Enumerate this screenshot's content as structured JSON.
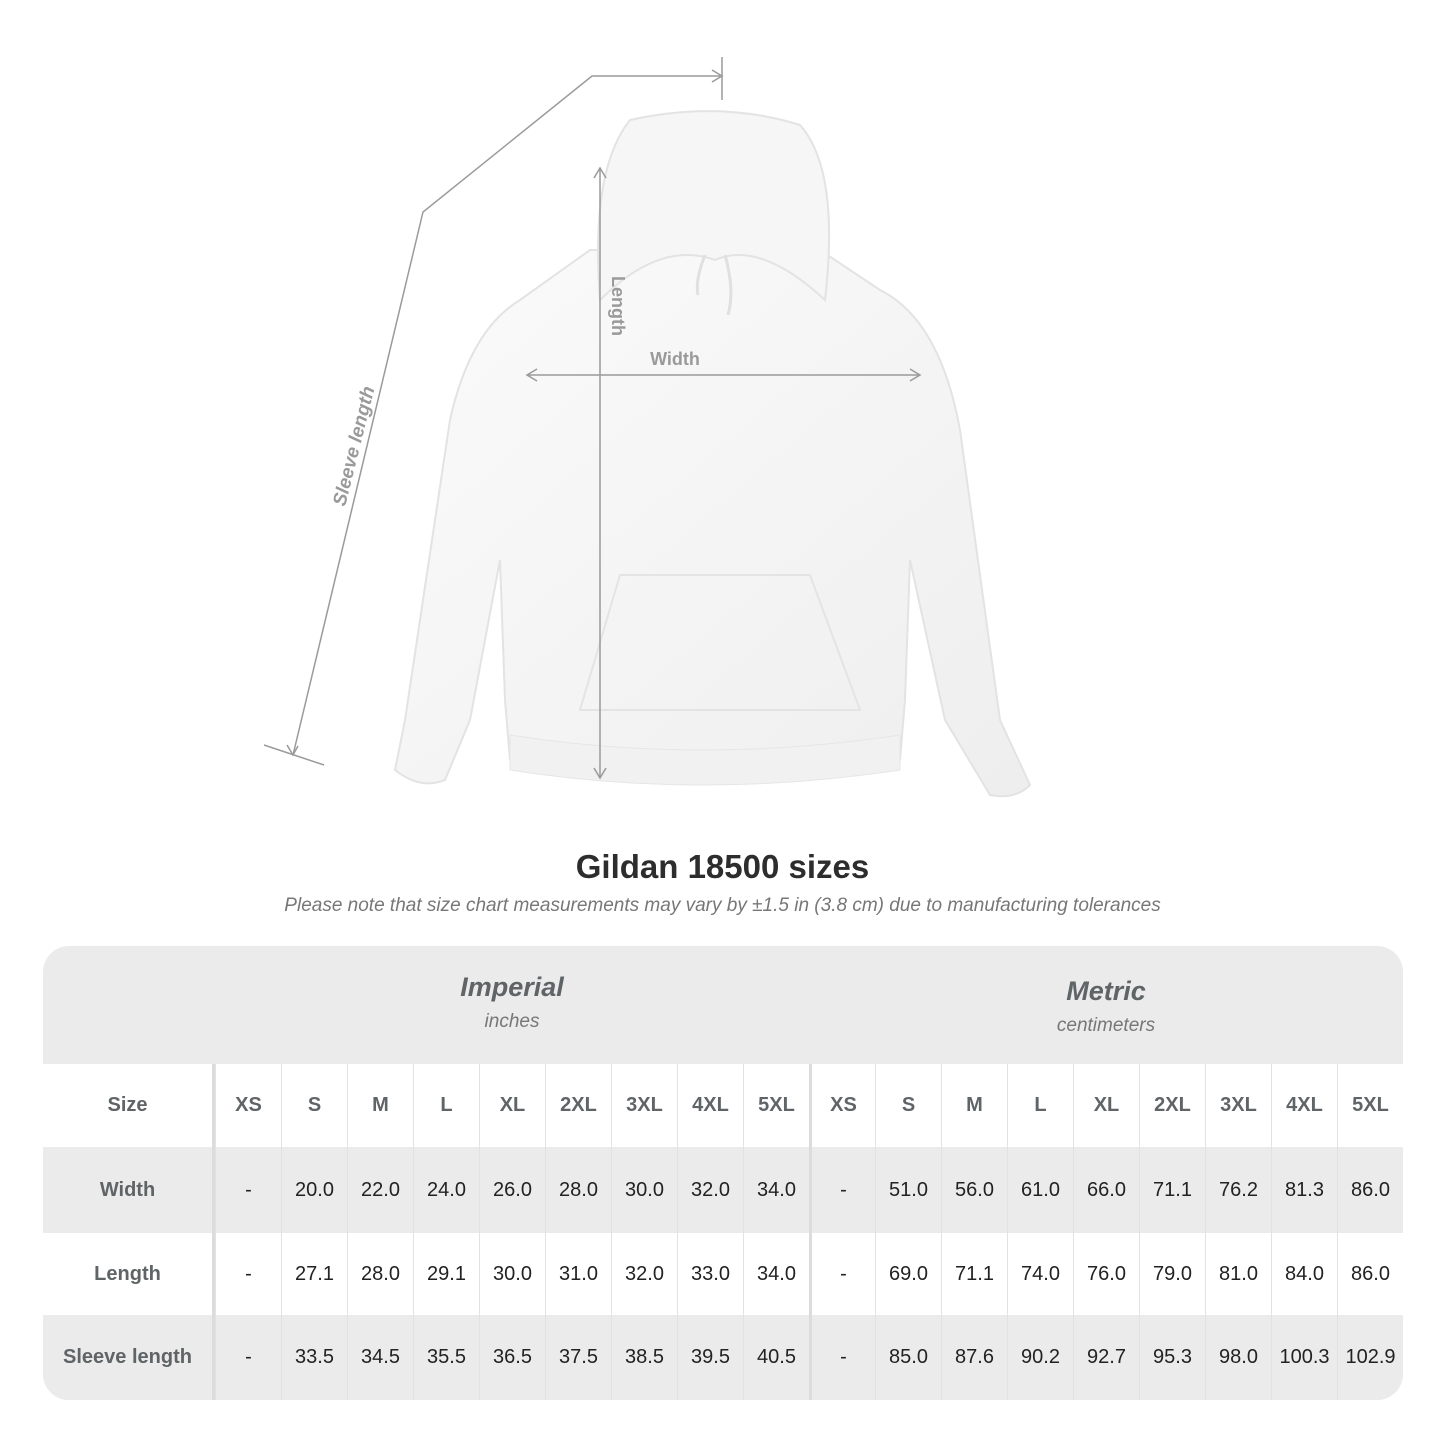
{
  "diagram": {
    "labels": {
      "length": "Length",
      "width": "Width",
      "sleeve": "Sleeve length"
    }
  },
  "title": "Gildan 18500 sizes",
  "note": "Please note that size chart measurements may vary by ±1.5 in (3.8 cm) due to manufacturing tolerances",
  "table": {
    "imperial": {
      "title": "Imperial",
      "unit": "inches"
    },
    "metric": {
      "title": "Metric",
      "unit": "centimeters"
    },
    "size_label": "Size",
    "sizes": [
      "XS",
      "S",
      "M",
      "L",
      "XL",
      "2XL",
      "3XL",
      "4XL",
      "5XL"
    ],
    "rows": [
      {
        "label": "Width",
        "imperial": [
          "-",
          "20.0",
          "22.0",
          "24.0",
          "26.0",
          "28.0",
          "30.0",
          "32.0",
          "34.0"
        ],
        "metric": [
          "-",
          "51.0",
          "56.0",
          "61.0",
          "66.0",
          "71.1",
          "76.2",
          "81.3",
          "86.0"
        ]
      },
      {
        "label": "Length",
        "imperial": [
          "-",
          "27.1",
          "28.0",
          "29.1",
          "30.0",
          "31.0",
          "32.0",
          "33.0",
          "34.0"
        ],
        "metric": [
          "-",
          "69.0",
          "71.1",
          "74.0",
          "76.0",
          "79.0",
          "81.0",
          "84.0",
          "86.0"
        ]
      },
      {
        "label": "Sleeve length",
        "imperial": [
          "-",
          "33.5",
          "34.5",
          "35.5",
          "36.5",
          "37.5",
          "38.5",
          "39.5",
          "40.5"
        ],
        "metric": [
          "-",
          "85.0",
          "87.6",
          "90.2",
          "92.7",
          "95.3",
          "98.0",
          "100.3",
          "102.9"
        ]
      }
    ]
  },
  "colors": {
    "band": "#ebebeb",
    "label_text": "#5f6466",
    "guide_lines": "#9a9a9a"
  }
}
